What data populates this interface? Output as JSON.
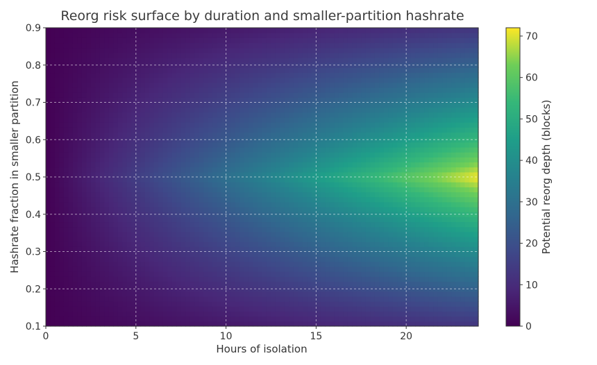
{
  "chart_data": {
    "type": "heatmap",
    "title": "Reorg risk surface by duration and smaller-partition hashrate",
    "xlabel": "Hours of isolation",
    "ylabel": "Hashrate fraction in smaller partition",
    "colorbar_label": "Potential reorg depth (blocks)",
    "colormap": "viridis",
    "xlim": [
      0,
      24
    ],
    "ylim": [
      0.1,
      0.9
    ],
    "xticks": [
      0,
      5,
      10,
      15,
      20
    ],
    "yticks": [
      0.1,
      0.2,
      0.3,
      0.4,
      0.5,
      0.6,
      0.7,
      0.8,
      0.9
    ],
    "colorbar_range": [
      0,
      72
    ],
    "colorbar_ticks": [
      0,
      10,
      20,
      30,
      40,
      50,
      60,
      70
    ],
    "grid": true,
    "surface": {
      "peak_value": 72,
      "peak_at": {
        "x": 24,
        "y": 0.5
      },
      "value_at_corners": {
        "x0_y0.1": 0,
        "x24_y0.1": 13,
        "x24_y0.9": 13
      }
    }
  }
}
